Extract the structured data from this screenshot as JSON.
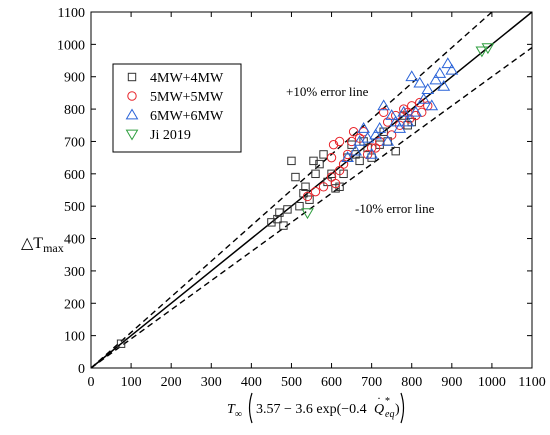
{
  "chart_data": {
    "type": "scatter",
    "xlim": [
      0,
      1100
    ],
    "ylim": [
      0,
      1100
    ],
    "xticks": [
      "0",
      "100",
      "200",
      "300",
      "400",
      "500",
      "600",
      "700",
      "800",
      "900",
      "1000",
      "1100"
    ],
    "yticks": [
      "0",
      "100",
      "200",
      "300",
      "400",
      "500",
      "600",
      "700",
      "800",
      "900",
      "1000",
      "1100"
    ],
    "xlabel": {
      "prefix": "T",
      "prefix_sub": "∞",
      "body": "3.57 − 3.6 exp(−0.4",
      "qvar": "Q",
      "qsub": "eq",
      "qsup": "*",
      "close": ")"
    },
    "ylabel": {
      "main": "△T",
      "sub": "max"
    },
    "legend_position": "top-left",
    "grid": false,
    "reference_lines": [
      {
        "name": "y = x",
        "slope": 1.0,
        "style": "solid"
      },
      {
        "name": "+10% error line",
        "slope": 1.1,
        "style": "dashed"
      },
      {
        "name": "-10% error line",
        "slope": 0.9,
        "style": "dashed"
      }
    ],
    "annotations": [
      "+10% error line",
      "-10% error line"
    ],
    "series": [
      {
        "name": "4MW+4MW",
        "marker": "square",
        "color": "#333333",
        "points": [
          [
            75,
            75
          ],
          [
            450,
            450
          ],
          [
            465,
            460
          ],
          [
            470,
            480
          ],
          [
            480,
            440
          ],
          [
            490,
            490
          ],
          [
            500,
            640
          ],
          [
            510,
            590
          ],
          [
            520,
            500
          ],
          [
            530,
            540
          ],
          [
            535,
            560
          ],
          [
            545,
            520
          ],
          [
            555,
            640
          ],
          [
            560,
            600
          ],
          [
            570,
            630
          ],
          [
            580,
            660
          ],
          [
            590,
            575
          ],
          [
            600,
            600
          ],
          [
            610,
            555
          ],
          [
            620,
            560
          ],
          [
            630,
            600
          ],
          [
            640,
            650
          ],
          [
            650,
            690
          ],
          [
            660,
            660
          ],
          [
            670,
            640
          ],
          [
            680,
            700
          ],
          [
            690,
            680
          ],
          [
            700,
            650
          ],
          [
            720,
            690
          ],
          [
            730,
            730
          ],
          [
            740,
            700
          ],
          [
            760,
            670
          ],
          [
            780,
            780
          ],
          [
            790,
            750
          ],
          [
            800,
            760
          ]
        ]
      },
      {
        "name": "5MW+5MW",
        "marker": "circle",
        "color": "#e8242a",
        "points": [
          [
            540,
            530
          ],
          [
            560,
            545
          ],
          [
            580,
            560
          ],
          [
            600,
            590
          ],
          [
            610,
            570
          ],
          [
            620,
            610
          ],
          [
            600,
            650
          ],
          [
            605,
            690
          ],
          [
            620,
            700
          ],
          [
            630,
            630
          ],
          [
            640,
            660
          ],
          [
            650,
            700
          ],
          [
            655,
            730
          ],
          [
            670,
            710
          ],
          [
            680,
            730
          ],
          [
            690,
            660
          ],
          [
            700,
            680
          ],
          [
            710,
            680
          ],
          [
            720,
            700
          ],
          [
            730,
            790
          ],
          [
            740,
            760
          ],
          [
            750,
            720
          ],
          [
            760,
            780
          ],
          [
            770,
            750
          ],
          [
            780,
            800
          ],
          [
            790,
            790
          ],
          [
            795,
            770
          ],
          [
            800,
            810
          ],
          [
            810,
            780
          ],
          [
            820,
            820
          ],
          [
            825,
            790
          ],
          [
            840,
            810
          ]
        ]
      },
      {
        "name": "6MW+6MW",
        "marker": "triangle-up",
        "color": "#2a63d8",
        "points": [
          [
            640,
            650
          ],
          [
            660,
            670
          ],
          [
            670,
            700
          ],
          [
            680,
            740
          ],
          [
            690,
            710
          ],
          [
            700,
            660
          ],
          [
            710,
            720
          ],
          [
            720,
            740
          ],
          [
            730,
            810
          ],
          [
            740,
            700
          ],
          [
            750,
            780
          ],
          [
            760,
            760
          ],
          [
            770,
            740
          ],
          [
            780,
            790
          ],
          [
            790,
            760
          ],
          [
            800,
            900
          ],
          [
            810,
            790
          ],
          [
            820,
            880
          ],
          [
            830,
            830
          ],
          [
            840,
            860
          ],
          [
            850,
            810
          ],
          [
            860,
            890
          ],
          [
            870,
            910
          ],
          [
            880,
            870
          ],
          [
            890,
            940
          ],
          [
            900,
            920
          ]
        ]
      },
      {
        "name": "Ji 2019",
        "marker": "triangle-down",
        "color": "#2e9e3e",
        "points": [
          [
            540,
            480
          ],
          [
            975,
            980
          ],
          [
            990,
            990
          ]
        ]
      }
    ]
  }
}
